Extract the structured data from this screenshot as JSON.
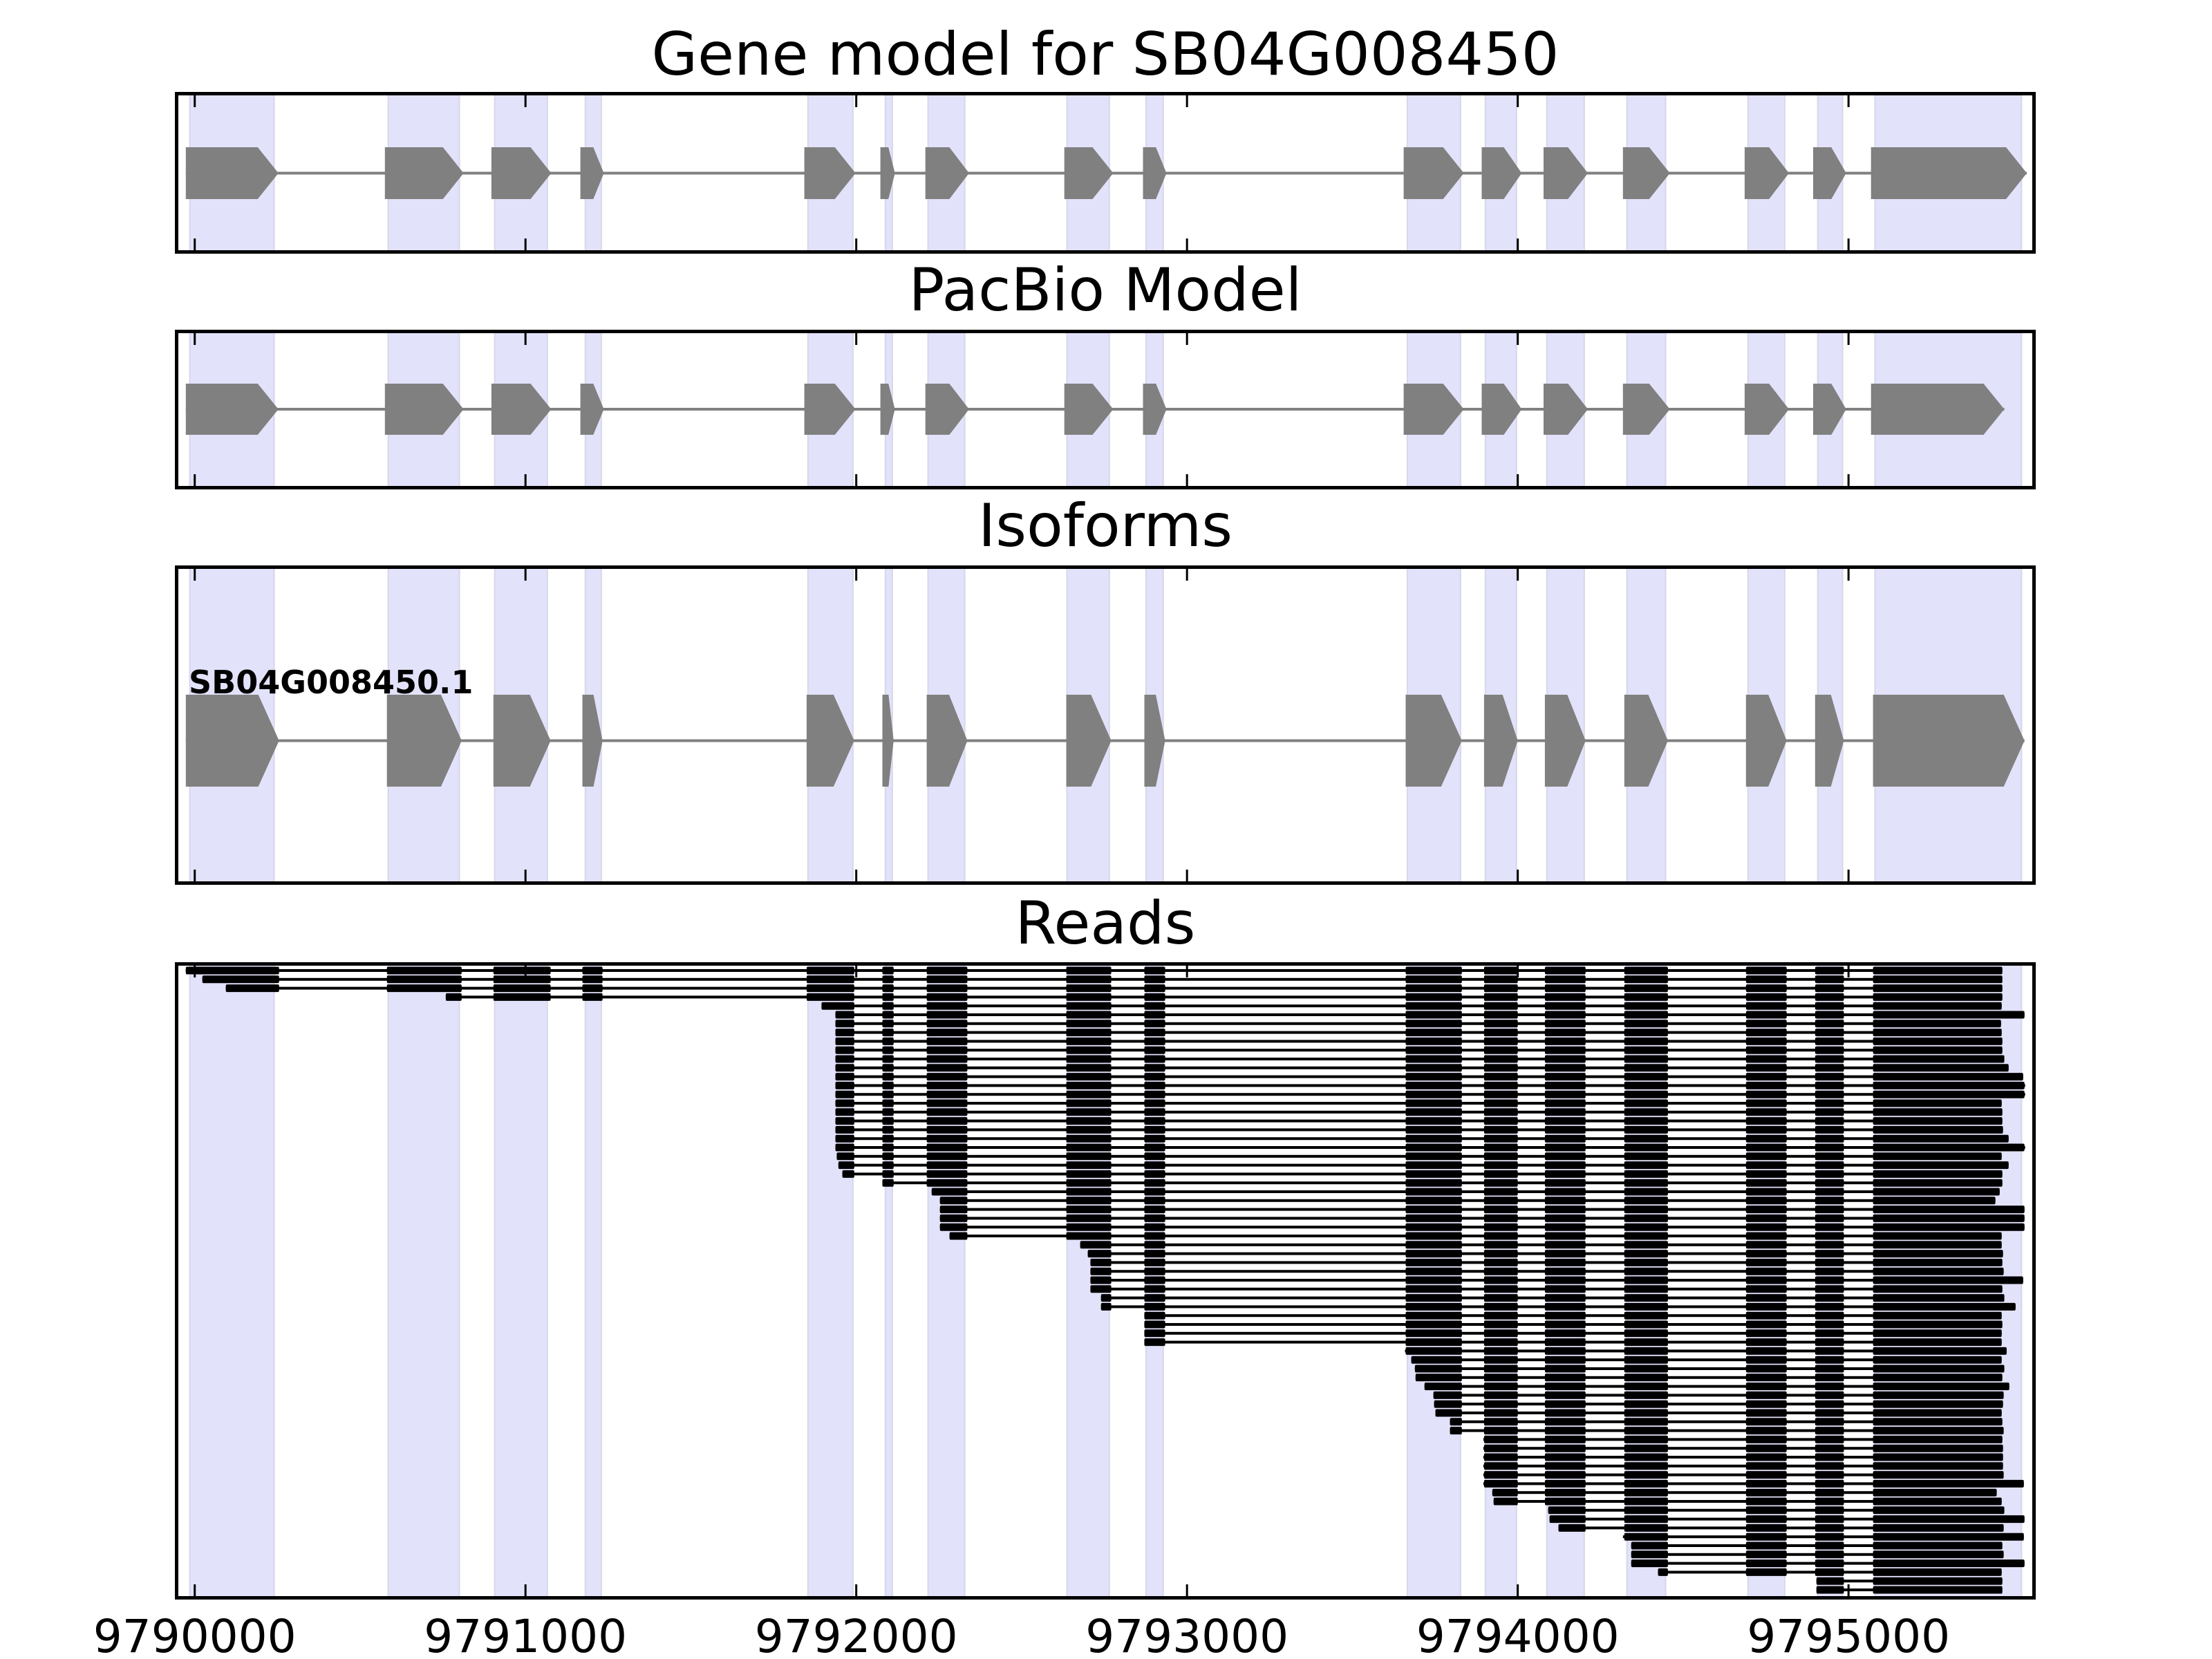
{
  "chart_data": {
    "type": "bar",
    "variant": "genomic interval tracks (horizontal segments)",
    "title": "Gene model for SB04G008450",
    "xlabel": "",
    "ylabel": "",
    "xlim": [
      9789940,
      9795566
    ],
    "grid": false,
    "xticks": [
      9790000,
      9791000,
      9792000,
      9793000,
      9794000,
      9795000
    ],
    "xtick_labels": [
      "9790000",
      "9791000",
      "9792000",
      "9793000",
      "9794000",
      "9795000"
    ],
    "exon_bands": [
      [
        9789985,
        9790240
      ],
      [
        9790585,
        9790800
      ],
      [
        9790907,
        9791066
      ],
      [
        9791181,
        9791229
      ],
      [
        9791854,
        9791990
      ],
      [
        9792088,
        9792109
      ],
      [
        9792217,
        9792328
      ],
      [
        9792637,
        9792765
      ],
      [
        9792876,
        9792928
      ],
      [
        9793666,
        9793827
      ],
      [
        9793902,
        9793996
      ],
      [
        9794088,
        9794201
      ],
      [
        9794330,
        9794447
      ],
      [
        9794696,
        9794807
      ],
      [
        9794907,
        9794982
      ],
      [
        9795080,
        9795523
      ]
    ],
    "panels": [
      {
        "title": "Gene model for SB04G008450",
        "kind": "model",
        "strand": "+",
        "exons": [
          [
            9789973,
            9790253
          ],
          [
            9790575,
            9790813
          ],
          [
            9790897,
            9791078
          ],
          [
            9791166,
            9791237
          ],
          [
            9791843,
            9791998
          ],
          [
            9792073,
            9792117
          ],
          [
            9792209,
            9792341
          ],
          [
            9792629,
            9792777
          ],
          [
            9792867,
            9792938
          ],
          [
            9793655,
            9793837
          ],
          [
            9793891,
            9794012
          ],
          [
            9794078,
            9794212
          ],
          [
            9794318,
            9794460
          ],
          [
            9794686,
            9794820
          ],
          [
            9794893,
            9794993
          ],
          [
            9795068,
            9795539
          ]
        ]
      },
      {
        "title": "PacBio Model",
        "kind": "model",
        "strand": "+",
        "exons": [
          [
            9789973,
            9790253
          ],
          [
            9790575,
            9790813
          ],
          [
            9790897,
            9791078
          ],
          [
            9791166,
            9791237
          ],
          [
            9791843,
            9791998
          ],
          [
            9792073,
            9792117
          ],
          [
            9792209,
            9792341
          ],
          [
            9792629,
            9792777
          ],
          [
            9792867,
            9792938
          ],
          [
            9793655,
            9793837
          ],
          [
            9793891,
            9794012
          ],
          [
            9794078,
            9794212
          ],
          [
            9794318,
            9794460
          ],
          [
            9794686,
            9794820
          ],
          [
            9794893,
            9794993
          ],
          [
            9795068,
            9795471
          ]
        ]
      },
      {
        "title": "Isoforms",
        "kind": "isoforms",
        "isoforms": [
          {
            "name": "SB04G008450.1",
            "strand": "+",
            "exons": [
              [
                9789973,
                9790255
              ],
              [
                9790581,
                9790807
              ],
              [
                9790903,
                9791076
              ],
              [
                9791172,
                9791233
              ],
              [
                9791850,
                9791994
              ],
              [
                9792079,
                9792113
              ],
              [
                9792213,
                9792336
              ],
              [
                9792635,
                9792771
              ],
              [
                9792871,
                9792934
              ],
              [
                9793661,
                9793831
              ],
              [
                9793898,
                9794000
              ],
              [
                9794082,
                9794205
              ],
              [
                9794322,
                9794454
              ],
              [
                9794690,
                9794813
              ],
              [
                9794899,
                9794986
              ],
              [
                9795074,
                9795532
              ]
            ]
          }
        ]
      },
      {
        "title": "Reads",
        "kind": "reads",
        "reads": [
          [
            9789973,
            9795465
          ],
          [
            9790023,
            9795465
          ],
          [
            9790094,
            9795465
          ],
          [
            9790759,
            9795465
          ],
          [
            9791895,
            9795463
          ],
          [
            9791937,
            9795532
          ],
          [
            9791937,
            9795461
          ],
          [
            9791937,
            9795463
          ],
          [
            9791937,
            9795465
          ],
          [
            9791937,
            9795465
          ],
          [
            9791937,
            9795471
          ],
          [
            9791937,
            9795484
          ],
          [
            9791937,
            9795528
          ],
          [
            9791937,
            9795534
          ],
          [
            9791937,
            9795534
          ],
          [
            9791937,
            9795463
          ],
          [
            9791937,
            9795465
          ],
          [
            9791937,
            9795465
          ],
          [
            9791937,
            9795467
          ],
          [
            9791937,
            9795484
          ],
          [
            9791937,
            9795534
          ],
          [
            9791941,
            9795463
          ],
          [
            9791946,
            9795484
          ],
          [
            9791958,
            9795465
          ],
          [
            9792079,
            9795465
          ],
          [
            9792228,
            9795457
          ],
          [
            9792253,
            9795444
          ],
          [
            9792253,
            9795532
          ],
          [
            9792253,
            9795532
          ],
          [
            9792253,
            9795532
          ],
          [
            9792282,
            9795463
          ],
          [
            9792677,
            9795463
          ],
          [
            9792700,
            9795467
          ],
          [
            9792708,
            9795465
          ],
          [
            9792708,
            9795469
          ],
          [
            9792708,
            9795528
          ],
          [
            9792708,
            9795465
          ],
          [
            9792740,
            9795471
          ],
          [
            9792740,
            9795505
          ],
          [
            9792871,
            9795463
          ],
          [
            9792871,
            9795465
          ],
          [
            9792871,
            9795463
          ],
          [
            9792871,
            9795463
          ],
          [
            9793659,
            9795478
          ],
          [
            9793678,
            9795463
          ],
          [
            9793689,
            9795471
          ],
          [
            9793691,
            9795465
          ],
          [
            9793718,
            9795486
          ],
          [
            9793745,
            9795469
          ],
          [
            9793747,
            9795467
          ],
          [
            9793751,
            9795463
          ],
          [
            9793795,
            9795465
          ],
          [
            9793795,
            9795469
          ],
          [
            9793896,
            9795465
          ],
          [
            9793896,
            9795467
          ],
          [
            9793896,
            9795467
          ],
          [
            9793896,
            9795467
          ],
          [
            9793896,
            9795469
          ],
          [
            9793896,
            9795530
          ],
          [
            9793923,
            9795448
          ],
          [
            9793927,
            9795463
          ],
          [
            9794092,
            9795471
          ],
          [
            9794096,
            9795532
          ],
          [
            9794123,
            9795469
          ],
          [
            9794318,
            9795530
          ],
          [
            9794343,
            9795465
          ],
          [
            9794343,
            9795469
          ],
          [
            9794343,
            9795532
          ],
          [
            9794424,
            9795463
          ],
          [
            9794903,
            9795465
          ],
          [
            9794903,
            9795465
          ]
        ]
      }
    ]
  },
  "colors": {
    "background": "#ffffff",
    "band_fill": "#e2e2fa",
    "band_edge": "#d6d6ec",
    "exon": "#808080",
    "read": "#000000",
    "frame": "#000000"
  }
}
